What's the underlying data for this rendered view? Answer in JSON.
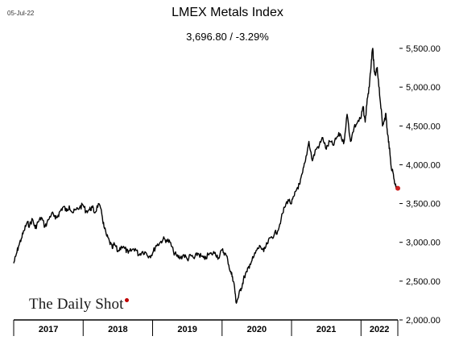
{
  "header": {
    "date": "05-Jul-22",
    "title": "LMEX Metals Index",
    "subtitle": "3,696.80  /  -3.29%"
  },
  "watermark": {
    "text": "The Daily Shot"
  },
  "colors": {
    "line": "#000000",
    "last_point": "#cc2222",
    "axis": "#000000"
  },
  "chart_data": {
    "type": "line",
    "title": "LMEX Metals Index",
    "last_value": 3696.8,
    "change_pct": -3.29,
    "ylim": [
      2000,
      5500
    ],
    "y_ticks": [
      2000,
      2500,
      3000,
      3500,
      4000,
      4500,
      5000,
      5500
    ],
    "y_tick_labels": [
      "2,000.00",
      "2,500.00",
      "3,000.00",
      "3,500.00",
      "4,000.00",
      "4,500.00",
      "5,000.00",
      "5,500.00"
    ],
    "y_axis_position": "right",
    "x_categories": [
      "2017",
      "2018",
      "2019",
      "2020",
      "2021",
      "2022"
    ],
    "x_year_bounds": [
      2017.0,
      2018.0,
      2019.0,
      2020.0,
      2021.0,
      2022.0,
      2022.53
    ],
    "grid": false,
    "series": [
      {
        "name": "",
        "x": [
          2017.0,
          2017.03,
          2017.07,
          2017.11,
          2017.15,
          2017.19,
          2017.23,
          2017.27,
          2017.31,
          2017.35,
          2017.4,
          2017.45,
          2017.5,
          2017.55,
          2017.6,
          2017.64,
          2017.68,
          2017.72,
          2017.76,
          2017.8,
          2017.85,
          2017.9,
          2017.95,
          2018.0,
          2018.04,
          2018.09,
          2018.13,
          2018.17,
          2018.22,
          2018.27,
          2018.3,
          2018.34,
          2018.38,
          2018.42,
          2018.45,
          2018.5,
          2018.55,
          2018.6,
          2018.65,
          2018.7,
          2018.75,
          2018.8,
          2018.85,
          2018.9,
          2018.95,
          2019.0,
          2019.05,
          2019.1,
          2019.15,
          2019.2,
          2019.25,
          2019.3,
          2019.35,
          2019.4,
          2019.45,
          2019.5,
          2019.55,
          2019.6,
          2019.65,
          2019.7,
          2019.75,
          2019.8,
          2019.85,
          2019.9,
          2019.95,
          2020.0,
          2020.04,
          2020.08,
          2020.12,
          2020.15,
          2020.18,
          2020.2,
          2020.23,
          2020.26,
          2020.29,
          2020.32,
          2020.36,
          2020.4,
          2020.45,
          2020.5,
          2020.55,
          2020.6,
          2020.65,
          2020.7,
          2020.75,
          2020.8,
          2020.85,
          2020.9,
          2020.95,
          2021.0,
          2021.04,
          2021.08,
          2021.12,
          2021.16,
          2021.2,
          2021.25,
          2021.3,
          2021.35,
          2021.4,
          2021.45,
          2021.5,
          2021.55,
          2021.6,
          2021.65,
          2021.7,
          2021.75,
          2021.8,
          2021.85,
          2021.9,
          2021.95,
          2022.0,
          2022.03,
          2022.06,
          2022.09,
          2022.12,
          2022.15,
          2022.17,
          2022.19,
          2022.21,
          2022.23,
          2022.25,
          2022.28,
          2022.31,
          2022.34,
          2022.36,
          2022.38,
          2022.4,
          2022.43,
          2022.46,
          2022.49,
          2022.51,
          2022.53
        ],
        "y": [
          2730,
          2820,
          2950,
          3050,
          3150,
          3250,
          3220,
          3300,
          3180,
          3260,
          3320,
          3200,
          3290,
          3380,
          3300,
          3350,
          3420,
          3460,
          3400,
          3470,
          3380,
          3420,
          3450,
          3480,
          3400,
          3420,
          3450,
          3380,
          3500,
          3360,
          3200,
          3080,
          3010,
          2920,
          2980,
          2880,
          2950,
          2920,
          2860,
          2900,
          2920,
          2840,
          2880,
          2870,
          2820,
          2860,
          2960,
          2990,
          3040,
          3030,
          3000,
          2880,
          2820,
          2800,
          2840,
          2780,
          2830,
          2790,
          2860,
          2820,
          2780,
          2840,
          2850,
          2870,
          2800,
          2900,
          2860,
          2780,
          2620,
          2560,
          2420,
          2230,
          2280,
          2380,
          2450,
          2560,
          2620,
          2720,
          2800,
          2900,
          2950,
          2880,
          2980,
          3060,
          3100,
          3150,
          3300,
          3450,
          3550,
          3500,
          3600,
          3700,
          3750,
          3900,
          4050,
          4300,
          4050,
          4200,
          4250,
          4350,
          4200,
          4300,
          4250,
          4350,
          4400,
          4270,
          4650,
          4300,
          4480,
          4550,
          4600,
          4750,
          4550,
          4850,
          5000,
          5350,
          5500,
          5200,
          5150,
          5250,
          5100,
          4800,
          4500,
          4600,
          4650,
          4400,
          4300,
          4000,
          3900,
          3750,
          3720,
          3696.8
        ]
      }
    ]
  }
}
